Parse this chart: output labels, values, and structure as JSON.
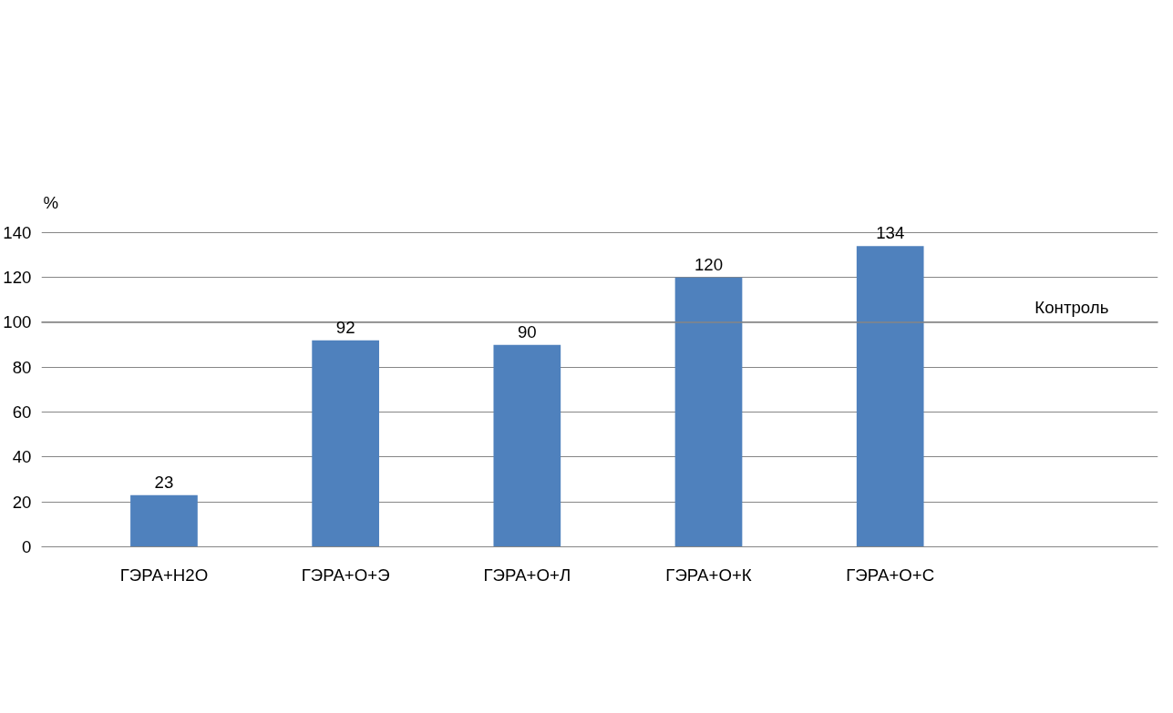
{
  "chart_data": {
    "type": "bar",
    "ylabel": "%",
    "categories": [
      "ГЭРА+H2O",
      "ГЭРА+О+Э",
      "ГЭРА+О+Л",
      "ГЭРА+О+К",
      "ГЭРА+О+С",
      null
    ],
    "values": [
      23,
      92,
      90,
      120,
      134,
      null
    ],
    "color": "#4f81bd",
    "ylim": [
      0,
      140
    ],
    "yticks": [
      0,
      20,
      40,
      60,
      80,
      100,
      120,
      140
    ],
    "grid": "y",
    "data_labels": true,
    "ref_lines": [
      {
        "axis": "y",
        "value": 100,
        "label": "Контроль",
        "color": "#868686"
      }
    ]
  }
}
